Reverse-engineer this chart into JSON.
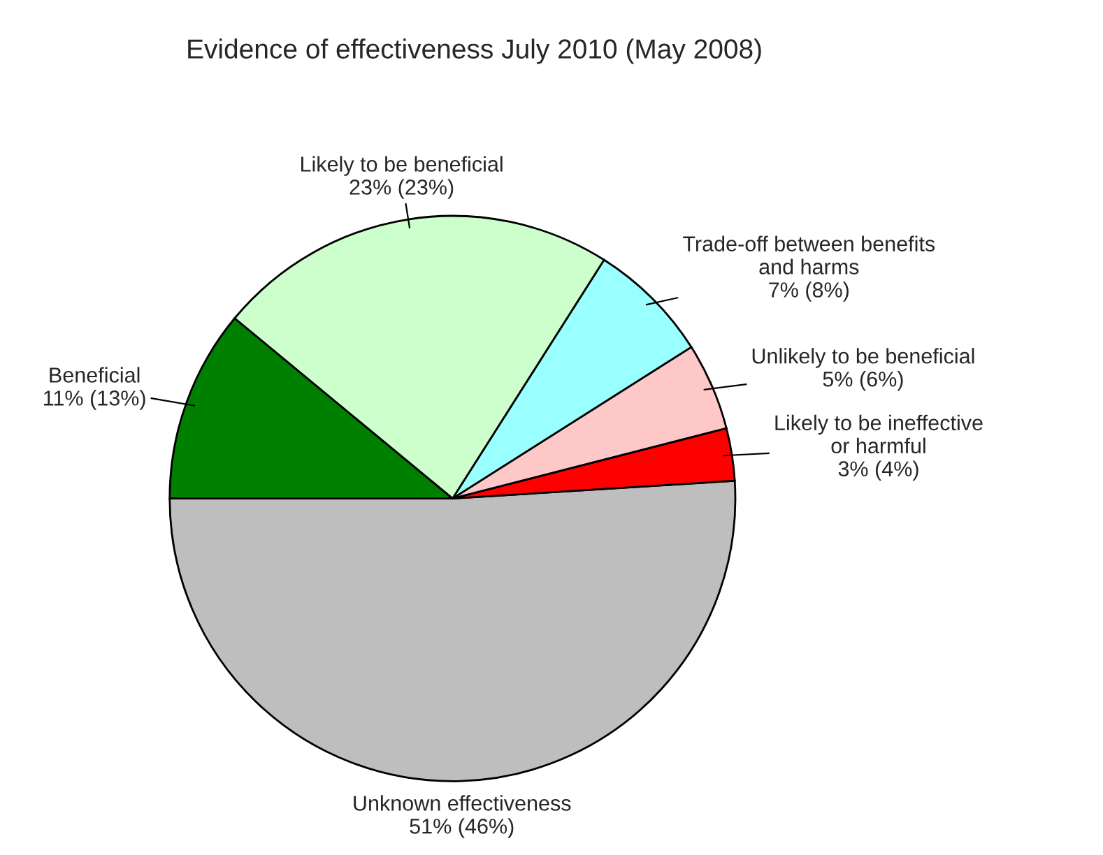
{
  "chart_data": {
    "type": "pie",
    "title": "Evidence of effectiveness July 2010 (May 2008)",
    "categories": [
      "Unknown effectiveness",
      "Likely to be ineffective\nor harmful",
      "Unlikely to be beneficial",
      "Trade-off between benefits\nand harms",
      "Likely to be beneficial",
      "Beneficial"
    ],
    "values": [
      51,
      3,
      5,
      7,
      23,
      11
    ],
    "value_labels": [
      "51% (46%)",
      "3% (4%)",
      "5% (6%)",
      "7% (8%)",
      "23% (23%)",
      "11% (13%)"
    ],
    "colors": [
      "#bebebe",
      "#ff0000",
      "#ffc8c8",
      "#99ffff",
      "#ccffcc",
      "#008000"
    ]
  }
}
